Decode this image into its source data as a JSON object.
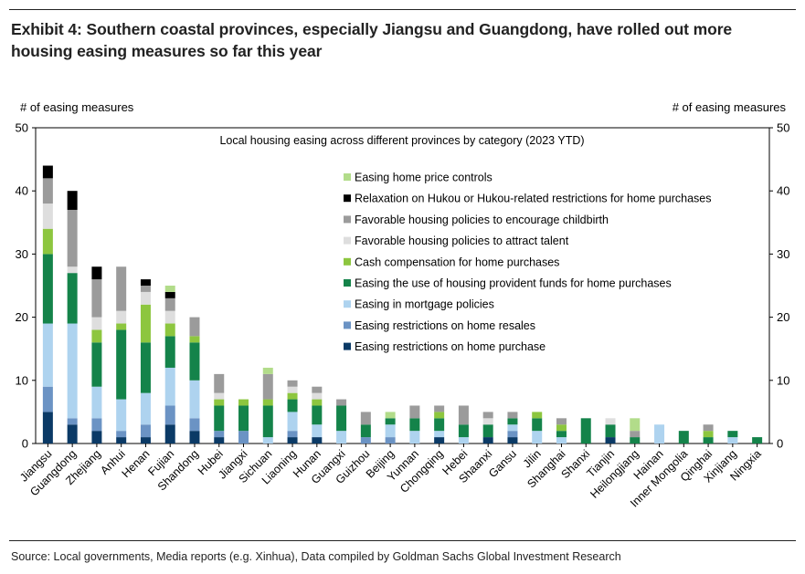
{
  "header": {
    "title": "Exhibit 4: Southern coastal provinces, especially Jiangsu and Guangdong, have rolled out more housing easing measures so far this year"
  },
  "footer": {
    "source": "Source: Local governments, Media reports (e.g. Xinhua), Data compiled by Goldman Sachs Global Investment Research"
  },
  "chart_data": {
    "type": "bar",
    "stacked": true,
    "title": "Local housing easing across different provinces by category (2023 YTD)",
    "ylabel_left": "# of easing measures",
    "ylabel_right": "# of easing measures",
    "ylim": [
      0,
      50
    ],
    "yticks": [
      0,
      10,
      20,
      30,
      40,
      50
    ],
    "categories": [
      "Jiangsu",
      "Guangdong",
      "Zhejiang",
      "Anhui",
      "Henan",
      "Fujian",
      "Shandong",
      "Hubei",
      "Jiangxi",
      "Sichuan",
      "Liaoning",
      "Hunan",
      "Guangxi",
      "Guizhou",
      "Beijing",
      "Yunnan",
      "Chongqing",
      "Hebei",
      "Shaanxi",
      "Gansu",
      "Jilin",
      "Shanghai",
      "Shanxi",
      "Tianjin",
      "Heilongjiang",
      "Hainan",
      "Inner Mongolia",
      "Qinghai",
      "Xinjiang",
      "Ningxia"
    ],
    "series": [
      {
        "name": "Easing restrictions on home purchase",
        "color": "#0b3a66",
        "values": [
          5,
          3,
          2,
          1,
          1,
          3,
          2,
          1,
          0,
          0,
          1,
          1,
          0,
          0,
          0,
          0,
          1,
          0,
          1,
          1,
          0,
          0,
          0,
          1,
          0,
          0,
          0,
          0,
          0,
          0
        ]
      },
      {
        "name": "Easing restrictions on home resales",
        "color": "#6b93c4",
        "values": [
          4,
          1,
          2,
          1,
          2,
          3,
          2,
          1,
          2,
          0,
          1,
          0,
          0,
          1,
          1,
          0,
          0,
          0,
          0,
          1,
          0,
          0,
          0,
          0,
          0,
          0,
          0,
          0,
          0,
          0
        ]
      },
      {
        "name": "Easing in mortgage policies",
        "color": "#aed3ef",
        "values": [
          10,
          15,
          5,
          5,
          5,
          6,
          6,
          0,
          0,
          1,
          3,
          2,
          2,
          0,
          2,
          2,
          1,
          1,
          0,
          1,
          2,
          1,
          0,
          0,
          0,
          3,
          0,
          0,
          1,
          0
        ]
      },
      {
        "name": "Easing the use of housing provident funds for home purchases",
        "color": "#14834a",
        "values": [
          11,
          8,
          7,
          11,
          8,
          5,
          6,
          4,
          4,
          5,
          2,
          3,
          4,
          2,
          1,
          2,
          2,
          2,
          2,
          1,
          2,
          1,
          4,
          2,
          1,
          0,
          2,
          1,
          1,
          1
        ]
      },
      {
        "name": "Cash compensation for home purchases",
        "color": "#8dc63f",
        "values": [
          4,
          0,
          2,
          1,
          6,
          2,
          1,
          1,
          1,
          1,
          1,
          1,
          0,
          0,
          0,
          0,
          1,
          0,
          0,
          0,
          1,
          1,
          0,
          0,
          0,
          0,
          0,
          1,
          0,
          0
        ]
      },
      {
        "name": "Favorable housing policies to attract talent",
        "color": "#dedede",
        "values": [
          4,
          1,
          2,
          2,
          2,
          2,
          0,
          1,
          0,
          0,
          1,
          1,
          0,
          0,
          0,
          0,
          0,
          0,
          1,
          0,
          0,
          0,
          0,
          1,
          0,
          0,
          0,
          0,
          0,
          0
        ]
      },
      {
        "name": "Favorable housing policies to encourage childbirth",
        "color": "#9b9b9b",
        "values": [
          4,
          9,
          6,
          7,
          1,
          2,
          3,
          3,
          0,
          4,
          1,
          1,
          1,
          2,
          0,
          2,
          1,
          3,
          1,
          1,
          0,
          1,
          0,
          0,
          1,
          0,
          0,
          1,
          0,
          0
        ]
      },
      {
        "name": "Relaxation on Hukou or Hukou-related restrictions for home purchases",
        "color": "#000000",
        "values": [
          2,
          3,
          2,
          0,
          1,
          1,
          0,
          0,
          0,
          0,
          0,
          0,
          0,
          0,
          0,
          0,
          0,
          0,
          0,
          0,
          0,
          0,
          0,
          0,
          0,
          0,
          0,
          0,
          0,
          0
        ]
      },
      {
        "name": "Easing home price controls",
        "color": "#b2dc8a",
        "values": [
          0,
          0,
          0,
          0,
          0,
          1,
          0,
          0,
          0,
          1,
          0,
          0,
          0,
          0,
          1,
          0,
          0,
          0,
          0,
          0,
          0,
          0,
          0,
          0,
          2,
          0,
          0,
          0,
          0,
          0
        ]
      }
    ],
    "legend_order": [
      8,
      7,
      6,
      5,
      4,
      3,
      2,
      1,
      0
    ],
    "legend_position": "top-right",
    "grid": false
  }
}
